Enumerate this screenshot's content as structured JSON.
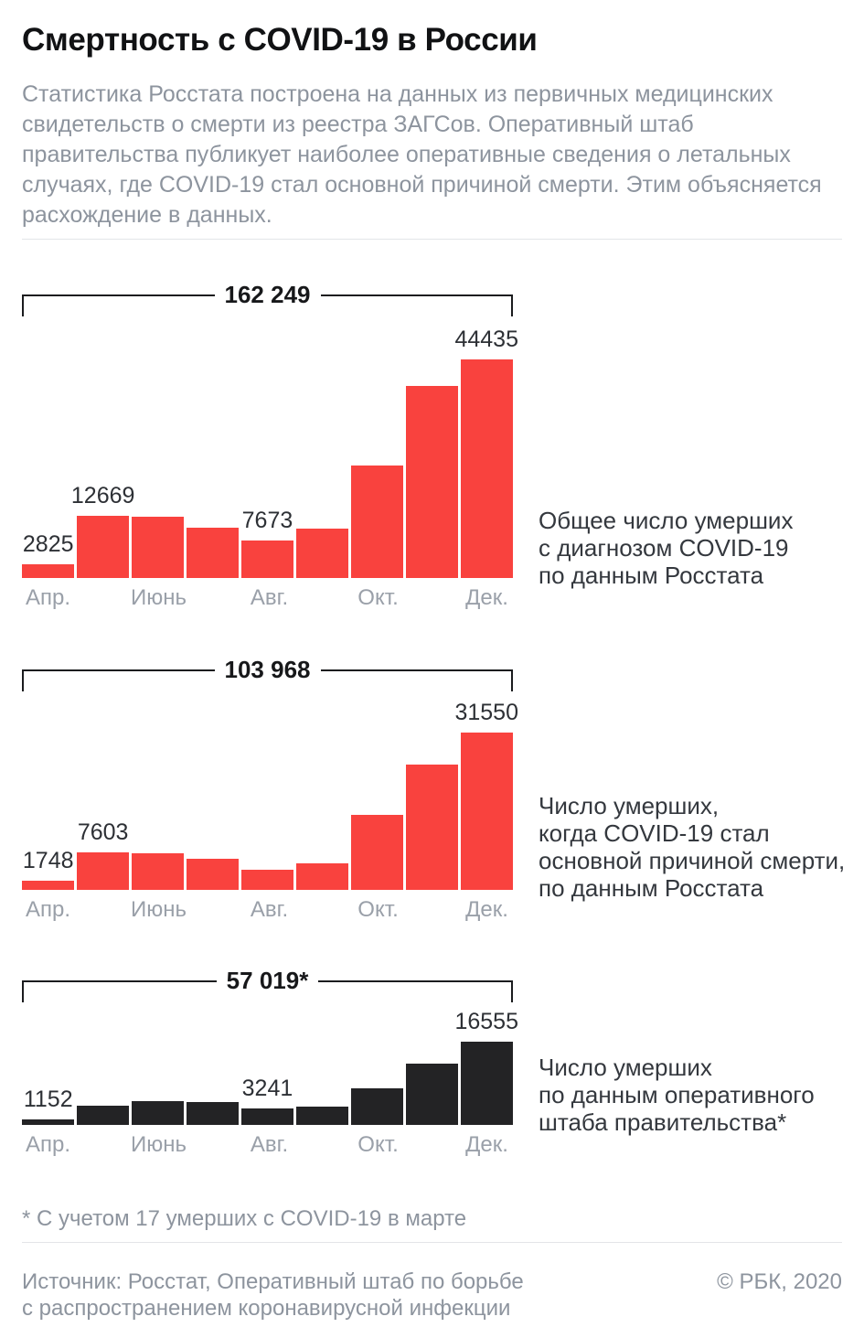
{
  "page": {
    "title": "Смертность с COVID-19 в России",
    "intro": "Статистика Росстата построена на данных из первичных медицинских\nсвидетельств о смерти из реестра ЗАГСов. Оперативный штаб\nправительства публикует наиболее оперативные сведения о летальных\nслучаях, где COVID-19 стал основной причиной смерти. Этим объясняется\nрасхождение в данных.",
    "footnote": "* С учетом 17 умерших с COVID-19 в марте",
    "source": "Источник: Росстат, Оперативный штаб по борьбе\nс распространением коронавирусной инфекции",
    "copyright": "© РБК, 2020"
  },
  "colors": {
    "rosstat_red": "#f9423e",
    "opershtab_black": "#232325",
    "bracket_black": "#1b1c1e",
    "value_label": "#2d3035",
    "axis_gray": "#9aa0a9",
    "muted_gray": "#8d949e"
  },
  "chart_data": [
    {
      "type": "bar",
      "total_label": "162 249",
      "total_value": 162249,
      "caption": "Общее число умерших\nс диагнозом COVID-19\nпо данным Росстата",
      "categories": [
        "Апрель",
        "Май",
        "Июнь",
        "Июль",
        "Август",
        "Сентябрь",
        "Октябрь",
        "Ноябрь",
        "Декабрь"
      ],
      "x_tick_labels": [
        "Апр.",
        "",
        "Июнь",
        "",
        "Авг.",
        "",
        "Окт.",
        "",
        "Дек."
      ],
      "values": [
        2825,
        12669,
        12450,
        10200,
        7673,
        10000,
        22900,
        39100,
        44435
      ],
      "value_labels": [
        "2825",
        "12669",
        "",
        "",
        "7673",
        "",
        "",
        "",
        "44435"
      ],
      "estimated_indices": [
        2,
        3,
        5,
        6,
        7
      ],
      "bar_color": "#f9423e",
      "legend_position": "right",
      "grid": false
    },
    {
      "type": "bar",
      "total_label": "103 968",
      "total_value": 103968,
      "caption": "Число умерших,\nкогда COVID-19 стал\nосновной причиной смерти,\nпо данным Росстата",
      "categories": [
        "Апрель",
        "Май",
        "Июнь",
        "Июль",
        "Август",
        "Сентябрь",
        "Октябрь",
        "Ноябрь",
        "Декабрь"
      ],
      "x_tick_labels": [
        "Апр.",
        "",
        "Июнь",
        "",
        "Авг.",
        "",
        "Окт.",
        "",
        "Дек."
      ],
      "values": [
        1748,
        7603,
        7350,
        6150,
        4050,
        5250,
        15100,
        25150,
        31550
      ],
      "value_labels": [
        "1748",
        "7603",
        "",
        "",
        "",
        "",
        "",
        "",
        "31550"
      ],
      "estimated_indices": [
        2,
        3,
        4,
        5,
        6,
        7
      ],
      "bar_color": "#f9423e",
      "legend_position": "right",
      "grid": false
    },
    {
      "type": "bar",
      "total_label": "57 019*",
      "total_value": 57019,
      "caption": "Число умерших\nпо данным оперативного\nштаба правительства*",
      "categories": [
        "Апрель",
        "Май",
        "Июнь",
        "Июль",
        "Август",
        "Сентябрь",
        "Октябрь",
        "Ноябрь",
        "Декабрь"
      ],
      "x_tick_labels": [
        "Апр.",
        "",
        "Июнь",
        "",
        "Авг.",
        "",
        "Окт.",
        "",
        "Дек."
      ],
      "values": [
        1152,
        3850,
        4700,
        4600,
        3241,
        3600,
        7200,
        12100,
        16555
      ],
      "value_labels": [
        "1152",
        "",
        "",
        "",
        "3241",
        "",
        "",
        "",
        "16555"
      ],
      "estimated_indices": [
        1,
        2,
        3,
        5,
        6,
        7
      ],
      "bar_color": "#232325",
      "legend_position": "right",
      "grid": false
    }
  ]
}
